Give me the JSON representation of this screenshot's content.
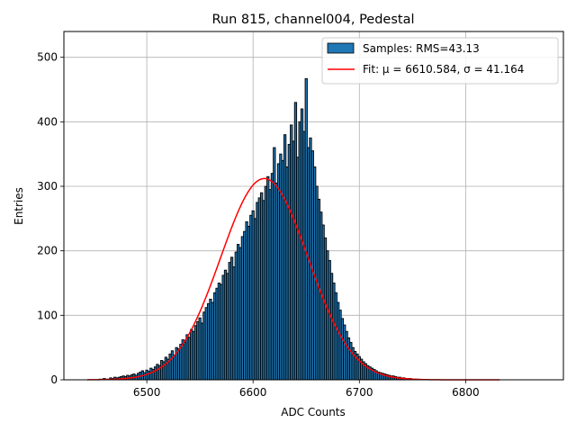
{
  "chart_data": {
    "type": "bar",
    "title": "Run 815, channel004, Pedestal",
    "xlabel": "ADC Counts",
    "ylabel": "Entries",
    "xlim": [
      6422,
      6892
    ],
    "ylim": [
      0,
      540
    ],
    "xticks": [
      6500,
      6600,
      6700,
      6800
    ],
    "yticks": [
      0,
      100,
      200,
      300,
      400,
      500
    ],
    "grid": true,
    "legend_position": "top-right",
    "colors": {
      "bars": "#1f77b4",
      "bar_edge": "#000000",
      "fit": "#ff0000",
      "grid": "#b0b0b0"
    },
    "series": [
      {
        "name": "Samples: RMS=43.13",
        "kind": "histogram"
      },
      {
        "name": "Fit: μ = 6610.584, σ = 41.164",
        "kind": "gaussian-fit",
        "mu": 6610.584,
        "sigma": 41.164,
        "amplitude": 312,
        "x_range": [
          6444,
          6832
        ]
      }
    ],
    "histogram": {
      "x_start": 6455,
      "bin_width": 2,
      "counts": [
        1,
        1,
        2,
        1,
        1,
        3,
        2,
        4,
        3,
        4,
        5,
        6,
        5,
        7,
        6,
        8,
        9,
        7,
        10,
        12,
        14,
        11,
        15,
        13,
        18,
        16,
        20,
        24,
        22,
        30,
        28,
        35,
        32,
        40,
        45,
        38,
        50,
        48,
        55,
        62,
        58,
        70,
        66,
        78,
        75,
        84,
        90,
        96,
        88,
        105,
        112,
        118,
        125,
        120,
        135,
        142,
        150,
        148,
        162,
        170,
        165,
        182,
        190,
        175,
        198,
        210,
        205,
        222,
        230,
        245,
        238,
        255,
        262,
        250,
        275,
        282,
        290,
        278,
        300,
        315,
        295,
        320,
        360,
        305,
        335,
        350,
        340,
        380,
        330,
        365,
        395,
        370,
        430,
        345,
        400,
        420,
        385,
        467,
        360,
        375,
        355,
        330,
        300,
        280,
        260,
        240,
        220,
        200,
        185,
        165,
        150,
        135,
        120,
        108,
        95,
        85,
        75,
        65,
        58,
        50,
        44,
        40,
        36,
        32,
        28,
        25,
        22,
        20,
        18,
        16,
        14,
        12,
        11,
        10,
        9,
        8,
        7,
        6,
        6,
        5,
        4,
        4,
        3,
        3,
        2,
        2,
        2,
        1,
        1,
        1
      ]
    }
  }
}
